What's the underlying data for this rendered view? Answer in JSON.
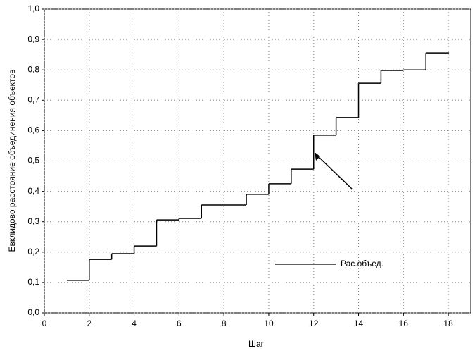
{
  "chart_data": {
    "type": "step",
    "x_label": "Шаг",
    "y_label": "Евклидово расстояние объединения объектов",
    "series": [
      {
        "name": "Рас.объед.",
        "color": "#000000",
        "x": [
          1,
          2,
          3,
          4,
          5,
          6,
          7,
          8,
          9,
          10,
          11,
          12,
          13,
          14,
          15,
          16,
          17,
          18
        ],
        "values": [
          0.107,
          0.176,
          0.195,
          0.22,
          0.306,
          0.311,
          0.355,
          0.355,
          0.39,
          0.425,
          0.473,
          0.585,
          0.643,
          0.756,
          0.798,
          0.8,
          0.856,
          0.856
        ]
      }
    ],
    "xlim": [
      0,
      19
    ],
    "xticks": [
      0,
      2,
      4,
      6,
      8,
      10,
      12,
      14,
      16,
      18
    ],
    "ylim": [
      0,
      1
    ],
    "yticks": [
      {
        "value": 0,
        "label": "0,0"
      },
      {
        "value": 0.1,
        "label": "0,1"
      },
      {
        "value": 0.2,
        "label": "0,2"
      },
      {
        "value": 0.3,
        "label": "0,3"
      },
      {
        "value": 0.4,
        "label": "0,4"
      },
      {
        "value": 0.5,
        "label": "0,5"
      },
      {
        "value": 0.6,
        "label": "0,6"
      },
      {
        "value": 0.7,
        "label": "0,7"
      },
      {
        "value": 0.8,
        "label": "0,8"
      },
      {
        "value": 0.9,
        "label": "0,9"
      },
      {
        "value": 1,
        "label": "1,0"
      }
    ],
    "grid": true
  }
}
